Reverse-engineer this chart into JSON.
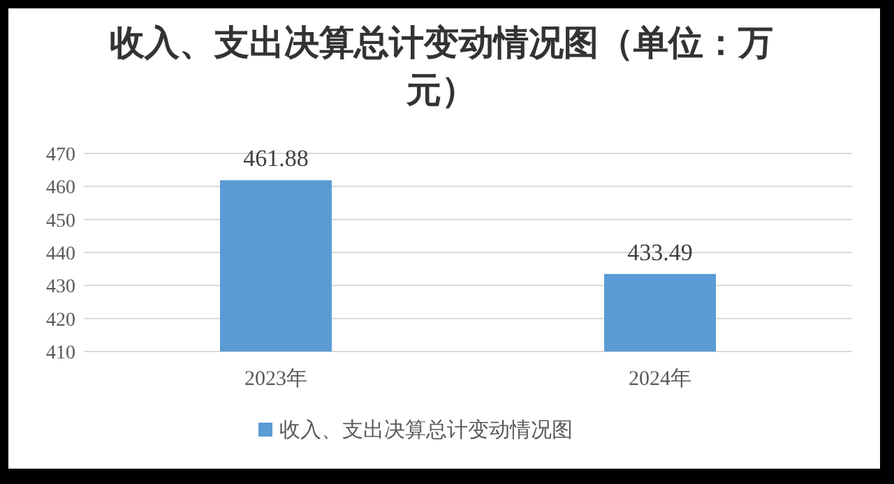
{
  "chart_data": {
    "type": "bar",
    "title": "收入、支出决算总计变动情况图（单位：万元）",
    "categories": [
      "2023年",
      "2024年"
    ],
    "series": [
      {
        "name": "收入、支出决算总计变动情况图",
        "color": "#5b9bd5",
        "values": [
          461.88,
          433.49
        ]
      }
    ],
    "ylim": [
      410,
      470
    ],
    "yticks": [
      410,
      420,
      430,
      440,
      450,
      460,
      470
    ],
    "grid": "y",
    "data_labels": true,
    "legend": "bottom"
  }
}
